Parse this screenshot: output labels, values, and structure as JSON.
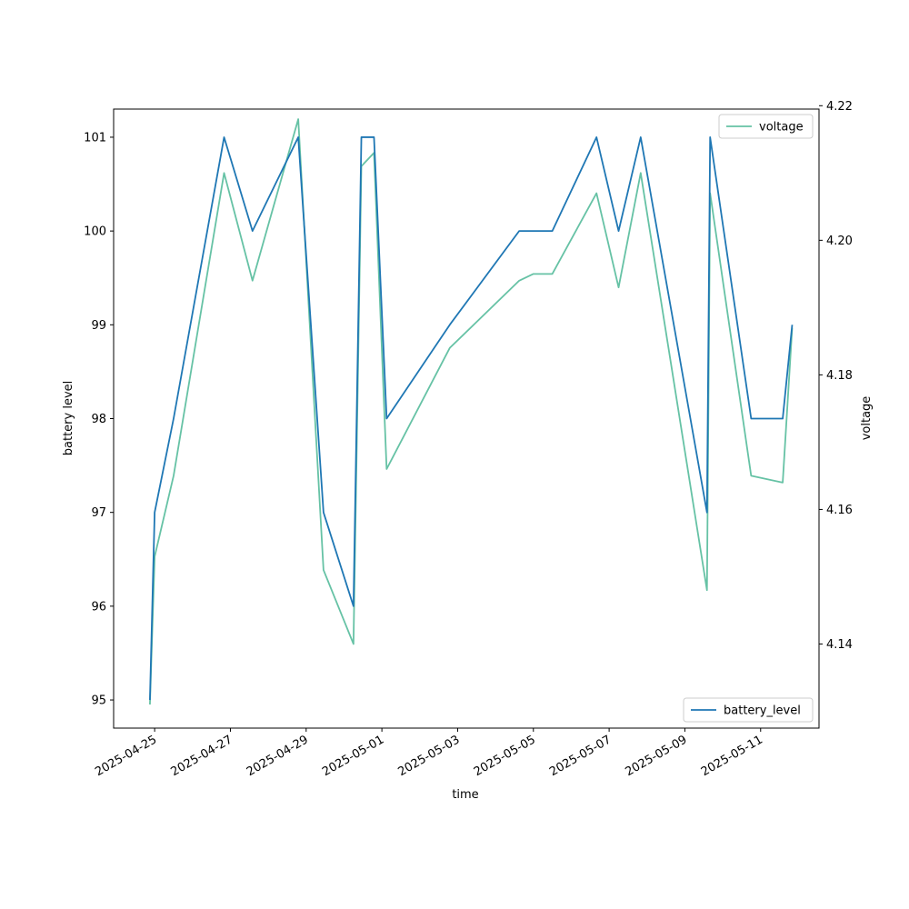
{
  "chart_data": {
    "type": "line",
    "title": "",
    "xlabel": "time",
    "ylabel_left": "battery level",
    "ylabel_right": "voltage",
    "x_tick_labels": [
      "2025-04-25",
      "2025-04-27",
      "2025-04-29",
      "2025-05-01",
      "2025-05-03",
      "2025-05-05",
      "2025-05-07",
      "2025-05-09",
      "2025-05-11"
    ],
    "x_ticks": [
      "2025-04-25T00:00",
      "2025-04-27T00:00",
      "2025-04-29T00:00",
      "2025-05-01T00:00",
      "2025-05-03T00:00",
      "2025-05-05T00:00",
      "2025-05-07T00:00",
      "2025-05-09T00:00",
      "2025-05-11T00:00"
    ],
    "xlim": [
      "2025-04-23T22:00",
      "2025-05-12T13:00"
    ],
    "left_yticks": [
      95,
      96,
      97,
      98,
      99,
      100,
      101
    ],
    "left_ylim": [
      94.7,
      101.3
    ],
    "right_yticks": [
      4.14,
      4.16,
      4.18,
      4.2,
      4.22
    ],
    "right_ylim": [
      4.1275,
      4.2195
    ],
    "grid": false,
    "legend_right_axis": "top-right",
    "legend_left_axis": "bottom-right",
    "series": [
      {
        "name": "battery_level",
        "axis": "left",
        "color": "#1f77b4",
        "points": [
          [
            "2025-04-24T21:00",
            95
          ],
          [
            "2025-04-25T00:00",
            97
          ],
          [
            "2025-04-25T12:00",
            98
          ],
          [
            "2025-04-26T20:00",
            101
          ],
          [
            "2025-04-27T14:00",
            100
          ],
          [
            "2025-04-28T19:00",
            101
          ],
          [
            "2025-04-29T11:00",
            97
          ],
          [
            "2025-04-30T06:00",
            96
          ],
          [
            "2025-04-30T11:00",
            101
          ],
          [
            "2025-04-30T19:00",
            101
          ],
          [
            "2025-05-01T03:00",
            98
          ],
          [
            "2025-05-02T19:00",
            99
          ],
          [
            "2025-05-04T15:00",
            100
          ],
          [
            "2025-05-05T12:00",
            100
          ],
          [
            "2025-05-06T16:00",
            101
          ],
          [
            "2025-05-07T06:00",
            100
          ],
          [
            "2025-05-07T20:00",
            101
          ],
          [
            "2025-05-09T14:00",
            97
          ],
          [
            "2025-05-09T16:00",
            101
          ],
          [
            "2025-05-10T18:00",
            98
          ],
          [
            "2025-05-11T14:00",
            98
          ],
          [
            "2025-05-11T20:00",
            99
          ]
        ]
      },
      {
        "name": "voltage",
        "axis": "right",
        "color": "#66c2a5",
        "points": [
          [
            "2025-04-24T21:00",
            4.131
          ],
          [
            "2025-04-25T00:00",
            4.153
          ],
          [
            "2025-04-25T12:00",
            4.165
          ],
          [
            "2025-04-26T20:00",
            4.21
          ],
          [
            "2025-04-27T14:00",
            4.194
          ],
          [
            "2025-04-28T19:00",
            4.218
          ],
          [
            "2025-04-29T11:00",
            4.151
          ],
          [
            "2025-04-30T06:00",
            4.14
          ],
          [
            "2025-04-30T11:00",
            4.211
          ],
          [
            "2025-04-30T19:00",
            4.213
          ],
          [
            "2025-05-01T03:00",
            4.166
          ],
          [
            "2025-05-02T19:00",
            4.184
          ],
          [
            "2025-05-04T15:00",
            4.194
          ],
          [
            "2025-05-05T00:00",
            4.195
          ],
          [
            "2025-05-05T12:00",
            4.195
          ],
          [
            "2025-05-06T16:00",
            4.207
          ],
          [
            "2025-05-07T06:00",
            4.193
          ],
          [
            "2025-05-07T20:00",
            4.21
          ],
          [
            "2025-05-09T14:00",
            4.148
          ],
          [
            "2025-05-09T16:00",
            4.207
          ],
          [
            "2025-05-10T18:00",
            4.165
          ],
          [
            "2025-05-11T14:00",
            4.164
          ],
          [
            "2025-05-11T20:00",
            4.187
          ]
        ]
      }
    ]
  }
}
